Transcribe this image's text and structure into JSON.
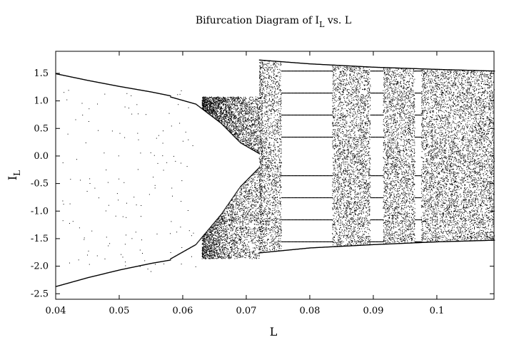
{
  "chart_data": {
    "type": "scatter",
    "title": "Bifurcation Diagram of I vs. L",
    "title_parts": {
      "prefix": "Bifurcation Diagram of I",
      "sub": "L",
      "suffix": " vs. L"
    },
    "xlabel": "L",
    "ylabel": {
      "main": "I",
      "sub": "L"
    },
    "xlim": [
      0.04,
      0.109
    ],
    "ylim": [
      -2.6,
      1.9
    ],
    "xticks": [
      0.04,
      0.05,
      0.06,
      0.07,
      0.08,
      0.09,
      0.1
    ],
    "xtick_labels": [
      "0.04",
      "0.05",
      "0.06",
      "0.07",
      "0.08",
      "0.09",
      "0.1"
    ],
    "yticks": [
      -2.5,
      -2.0,
      -1.5,
      -1.0,
      -0.5,
      0.0,
      0.5,
      1.0,
      1.5
    ],
    "ytick_labels": [
      "-2.5",
      "-2.0",
      "-1.5",
      "-1.0",
      "-0.5",
      "0.0",
      "0.5",
      "1.0",
      "1.5"
    ],
    "grid": false,
    "legend": "none",
    "point_color": "#000000",
    "series": [
      {
        "branch": "period-1 upper",
        "points": [
          [
            0.04,
            1.5
          ],
          [
            0.045,
            1.38
          ],
          [
            0.05,
            1.27
          ],
          [
            0.055,
            1.17
          ],
          [
            0.058,
            1.1
          ]
        ]
      },
      {
        "branch": "period-1 lower",
        "points": [
          [
            0.04,
            -2.36
          ],
          [
            0.045,
            -2.2
          ],
          [
            0.05,
            -2.06
          ],
          [
            0.055,
            -1.94
          ],
          [
            0.058,
            -1.88
          ]
        ]
      },
      {
        "branch": "inner envelope upper",
        "points": [
          [
            0.058,
            1.08
          ],
          [
            0.062,
            0.95
          ],
          [
            0.066,
            0.6
          ],
          [
            0.069,
            0.25
          ],
          [
            0.072,
            0.05
          ]
        ]
      },
      {
        "branch": "inner envelope lower",
        "points": [
          [
            0.058,
            -1.86
          ],
          [
            0.062,
            -1.6
          ],
          [
            0.066,
            -1.05
          ],
          [
            0.069,
            -0.55
          ],
          [
            0.072,
            -0.2
          ]
        ]
      },
      {
        "branch": "outer envelope upper",
        "points": [
          [
            0.072,
            1.75
          ],
          [
            0.08,
            1.68
          ],
          [
            0.09,
            1.62
          ],
          [
            0.1,
            1.58
          ],
          [
            0.109,
            1.55
          ]
        ]
      },
      {
        "branch": "outer envelope lower",
        "points": [
          [
            0.072,
            -1.75
          ],
          [
            0.08,
            -1.66
          ],
          [
            0.09,
            -1.6
          ],
          [
            0.1,
            -1.55
          ],
          [
            0.109,
            -1.52
          ]
        ]
      }
    ],
    "chaotic_bands_L": [
      [
        0.063,
        0.0725
      ],
      [
        0.072,
        0.0755
      ],
      [
        0.0835,
        0.0895
      ],
      [
        0.0915,
        0.0965
      ],
      [
        0.0975,
        0.109
      ]
    ],
    "periodic_windows_L": [
      [
        0.0755,
        0.0835
      ],
      [
        0.0895,
        0.0915
      ],
      [
        0.0965,
        0.0975
      ]
    ]
  }
}
